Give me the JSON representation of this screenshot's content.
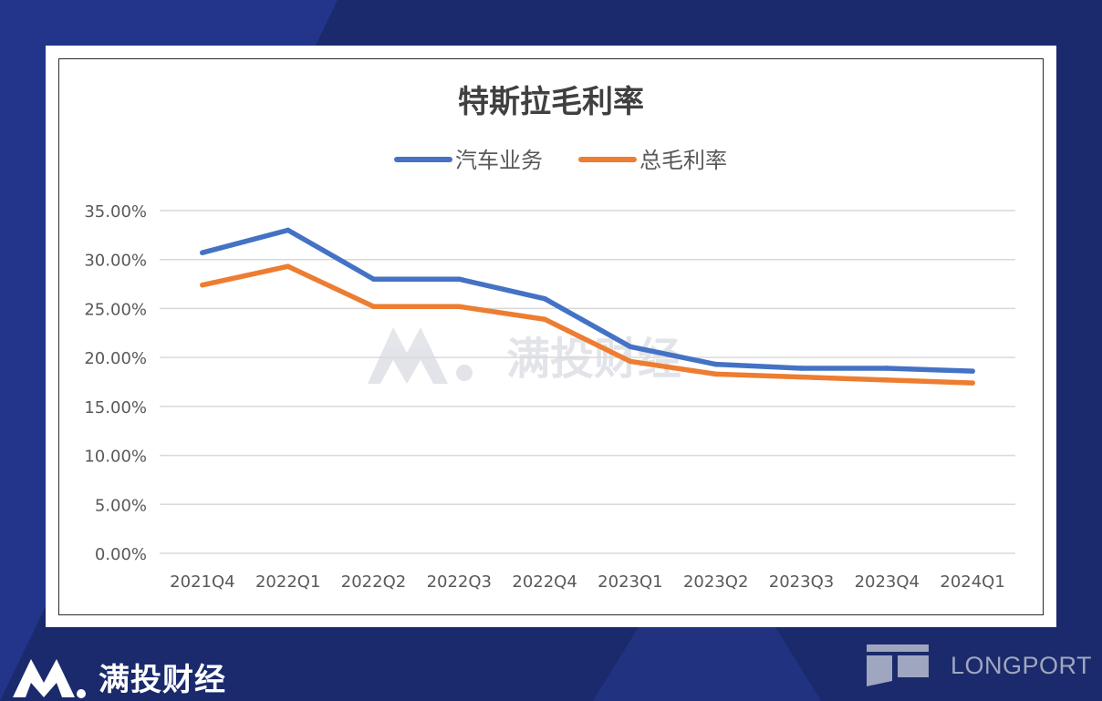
{
  "brand": {
    "left_name": "满投财经",
    "right_name": "LONGPORT",
    "watermark": "满投财经"
  },
  "icons": {
    "brand_logo": "manto-m-logo-icon",
    "longport_logo": "longport-logo-icon"
  },
  "chart_data": {
    "type": "line",
    "title": "特斯拉毛利率",
    "categories": [
      "2021Q4",
      "2022Q1",
      "2022Q2",
      "2022Q3",
      "2022Q4",
      "2023Q1",
      "2023Q2",
      "2023Q3",
      "2023Q4",
      "2024Q1"
    ],
    "series": [
      {
        "name": "汽车业务",
        "color": "#4472c4",
        "values": [
          30.7,
          33.0,
          28.0,
          28.0,
          26.0,
          21.1,
          19.3,
          18.9,
          18.9,
          18.6
        ]
      },
      {
        "name": "总毛利率",
        "color": "#ed7d31",
        "values": [
          27.4,
          29.3,
          25.2,
          25.2,
          23.9,
          19.6,
          18.3,
          18.0,
          17.7,
          17.4
        ]
      }
    ],
    "ylim": [
      0,
      35
    ],
    "yticks": [
      0,
      5,
      10,
      15,
      20,
      25,
      30,
      35
    ],
    "ytick_labels": [
      "0.00%",
      "5.00%",
      "10.00%",
      "15.00%",
      "20.00%",
      "25.00%",
      "30.00%",
      "35.00%"
    ],
    "grid": true,
    "legend_position": "top-center",
    "xlabel": "",
    "ylabel": ""
  }
}
